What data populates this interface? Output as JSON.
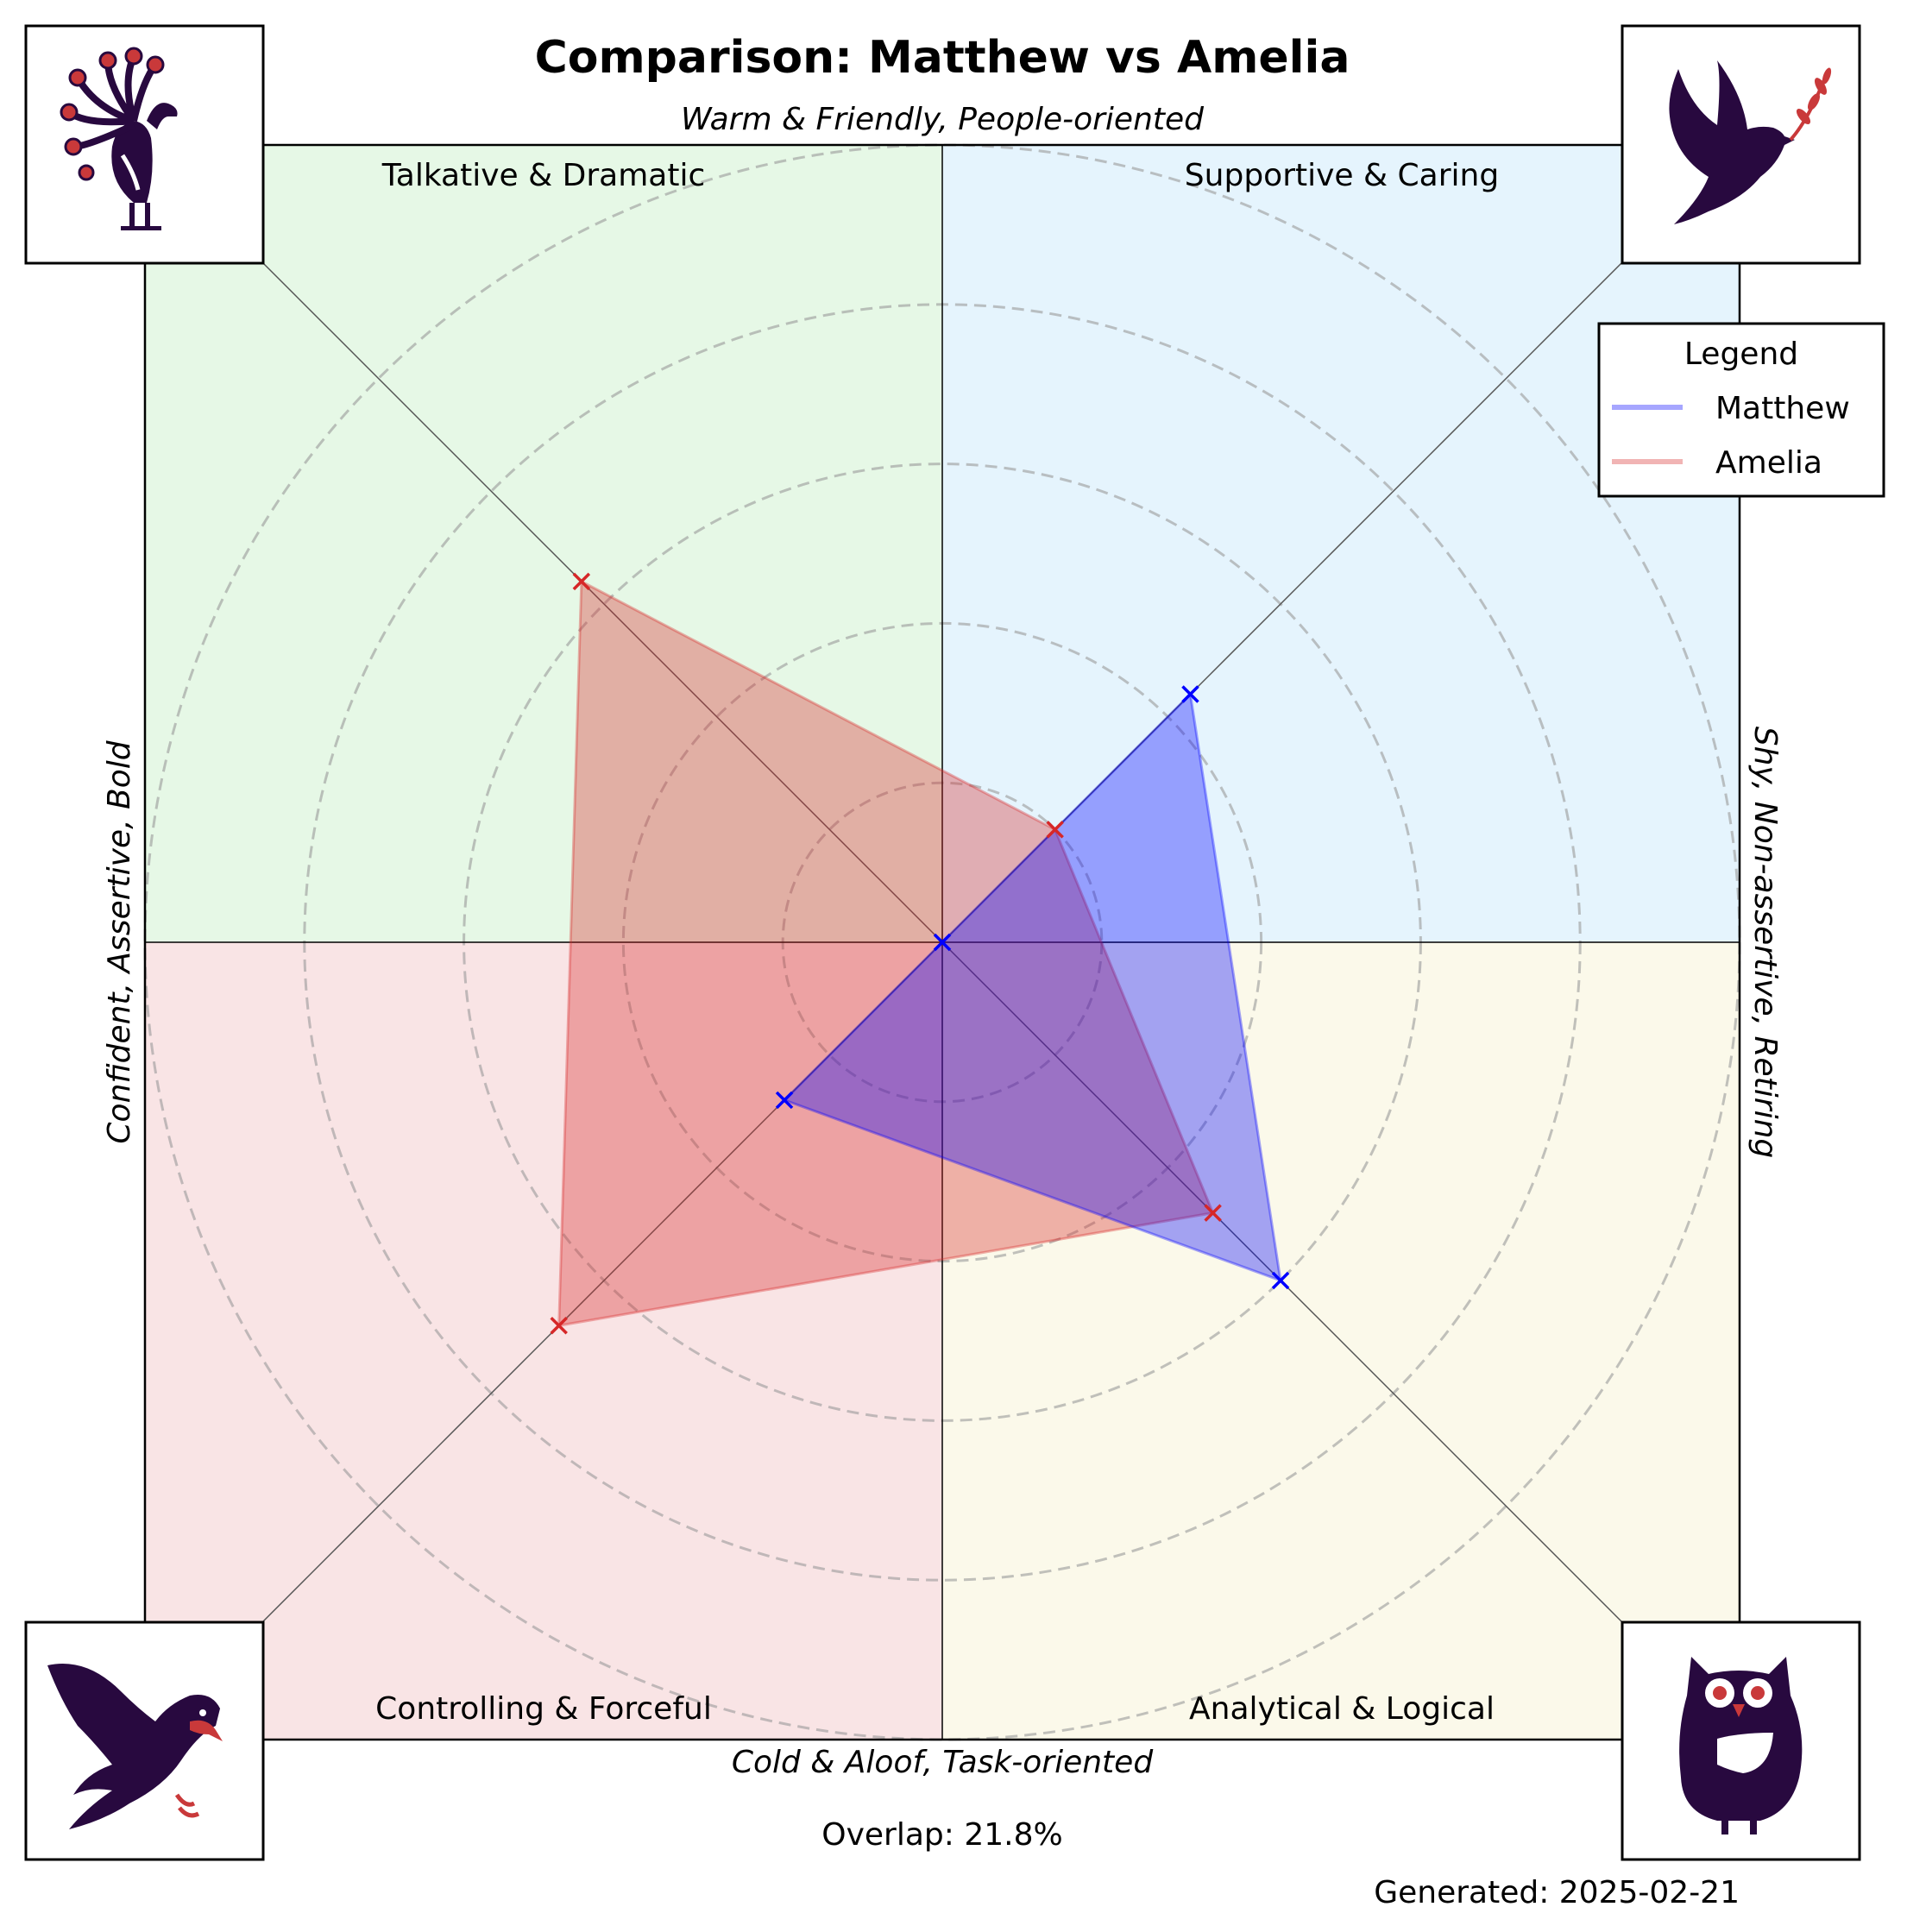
{
  "title": "Comparison: Matthew vs Amelia",
  "axes": {
    "top": "Warm & Friendly, People-oriented",
    "bottom": "Cold & Aloof, Task-oriented",
    "left": "Confident, Assertive, Bold",
    "right": "Shy, Non-assertive, Retiring"
  },
  "quadrants": {
    "top_left": "Talkative & Dramatic",
    "top_right": "Supportive & Caring",
    "bottom_left": "Controlling & Forceful",
    "bottom_right": "Analytical & Logical"
  },
  "legend": {
    "title": "Legend",
    "items": [
      "Matthew",
      "Amelia"
    ]
  },
  "overlap_text": "Overlap: 21.8%",
  "generated_text": "Generated: 2025-02-21",
  "icons": [
    "peacock-icon",
    "dove-icon",
    "eagle-icon",
    "owl-icon"
  ],
  "colors": {
    "quad_top_left": "#e6f8e6",
    "quad_top_right": "#e5f4fd",
    "quad_bottom_left": "#f9e4e5",
    "quad_bottom_right": "#fbf9ea",
    "matthew": "#0000ff",
    "amelia": "#d62728",
    "icon_dark": "#28093f",
    "icon_accent": "#c9393a"
  },
  "chart_data": {
    "type": "radar",
    "axes": [
      "Supportive & Caring",
      "Talkative & Dramatic",
      "Controlling & Forceful",
      "Analytical & Logical"
    ],
    "rmax": 5,
    "rings": [
      1,
      2,
      3,
      4,
      5
    ],
    "series": [
      {
        "name": "Matthew",
        "values": [
          2.2,
          0.0,
          1.4,
          3.0
        ],
        "color": "#0000ff"
      },
      {
        "name": "Amelia",
        "values": [
          1.0,
          3.2,
          3.4,
          2.4
        ],
        "color": "#d62728"
      }
    ]
  }
}
